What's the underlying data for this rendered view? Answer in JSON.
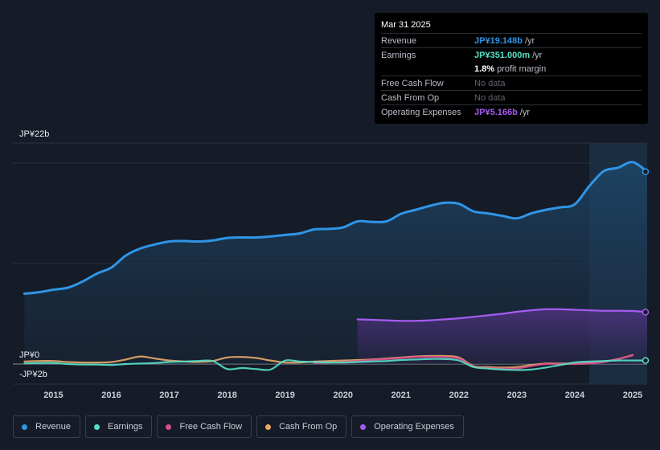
{
  "tooltip": {
    "date": "Mar 31 2025",
    "rows": [
      {
        "label": "Revenue",
        "value": "JP¥19.148b",
        "unit": "/yr",
        "color": "#2f95e6"
      },
      {
        "label": "Earnings",
        "value": "JP¥351.000m",
        "unit": "/yr",
        "color": "#55e0c8"
      },
      {
        "label": "",
        "value": "1.8%",
        "unit": "profit margin",
        "color": "#ffffff"
      },
      {
        "label": "Free Cash Flow",
        "nodata": "No data"
      },
      {
        "label": "Cash From Op",
        "nodata": "No data"
      },
      {
        "label": "Operating Expenses",
        "value": "JP¥5.166b",
        "unit": "/yr",
        "color": "#a55cf0"
      }
    ]
  },
  "legend": [
    {
      "label": "Revenue",
      "color": "#2f95e6"
    },
    {
      "label": "Earnings",
      "color": "#55e0c8"
    },
    {
      "label": "Free Cash Flow",
      "color": "#d94d8d"
    },
    {
      "label": "Cash From Op",
      "color": "#e8a868"
    },
    {
      "label": "Operating Expenses",
      "color": "#a55cf0"
    }
  ],
  "chart_data": {
    "type": "line",
    "title": "",
    "unit": "JP¥ billions",
    "y_labels": [
      "JP¥22b",
      "JP¥0",
      "-JP¥2b"
    ],
    "ylim": [
      -2,
      22
    ],
    "x_ticks": [
      "2015",
      "2016",
      "2017",
      "2018",
      "2019",
      "2020",
      "2021",
      "2022",
      "2023",
      "2024",
      "2025"
    ],
    "x_tick_values": [
      2015,
      2016,
      2017,
      2018,
      2019,
      2020,
      2021,
      2022,
      2023,
      2024,
      2025
    ],
    "xlim": [
      2014.3,
      2025.25
    ],
    "highlight_from": 2024.25,
    "series": [
      {
        "name": "Revenue",
        "color": "#2f95e6",
        "fill": true,
        "points": [
          [
            2014.5,
            7.0
          ],
          [
            2014.75,
            7.15
          ],
          [
            2015.0,
            7.4
          ],
          [
            2015.25,
            7.6
          ],
          [
            2015.5,
            8.2
          ],
          [
            2015.75,
            9.0
          ],
          [
            2016.0,
            9.6
          ],
          [
            2016.25,
            10.8
          ],
          [
            2016.5,
            11.5
          ],
          [
            2016.75,
            11.9
          ],
          [
            2017.0,
            12.2
          ],
          [
            2017.25,
            12.25
          ],
          [
            2017.5,
            12.2
          ],
          [
            2017.75,
            12.3
          ],
          [
            2018.0,
            12.55
          ],
          [
            2018.25,
            12.6
          ],
          [
            2018.5,
            12.6
          ],
          [
            2018.75,
            12.7
          ],
          [
            2019.0,
            12.85
          ],
          [
            2019.25,
            13.0
          ],
          [
            2019.5,
            13.4
          ],
          [
            2019.75,
            13.45
          ],
          [
            2020.0,
            13.6
          ],
          [
            2020.25,
            14.2
          ],
          [
            2020.5,
            14.15
          ],
          [
            2020.75,
            14.2
          ],
          [
            2021.0,
            14.95
          ],
          [
            2021.25,
            15.35
          ],
          [
            2021.5,
            15.75
          ],
          [
            2021.75,
            16.05
          ],
          [
            2022.0,
            15.95
          ],
          [
            2022.25,
            15.2
          ],
          [
            2022.5,
            15.0
          ],
          [
            2022.75,
            14.75
          ],
          [
            2023.0,
            14.5
          ],
          [
            2023.25,
            15.0
          ],
          [
            2023.5,
            15.35
          ],
          [
            2023.75,
            15.6
          ],
          [
            2024.0,
            15.9
          ],
          [
            2024.25,
            17.7
          ],
          [
            2024.5,
            19.2
          ],
          [
            2024.75,
            19.55
          ],
          [
            2025.0,
            20.1
          ],
          [
            2025.25,
            19.15
          ]
        ]
      },
      {
        "name": "Operating Expenses",
        "color": "#a55cf0",
        "fill": true,
        "points": [
          [
            2020.25,
            4.45
          ],
          [
            2020.5,
            4.4
          ],
          [
            2020.75,
            4.35
          ],
          [
            2021.0,
            4.3
          ],
          [
            2021.25,
            4.3
          ],
          [
            2021.5,
            4.35
          ],
          [
            2021.75,
            4.45
          ],
          [
            2022.0,
            4.55
          ],
          [
            2022.25,
            4.7
          ],
          [
            2022.5,
            4.85
          ],
          [
            2022.75,
            5.0
          ],
          [
            2023.0,
            5.2
          ],
          [
            2023.25,
            5.35
          ],
          [
            2023.5,
            5.45
          ],
          [
            2023.75,
            5.45
          ],
          [
            2024.0,
            5.4
          ],
          [
            2024.25,
            5.35
          ],
          [
            2024.5,
            5.3
          ],
          [
            2024.75,
            5.3
          ],
          [
            2025.0,
            5.28
          ],
          [
            2025.25,
            5.17
          ]
        ]
      },
      {
        "name": "Cash From Op",
        "color": "#e8a868",
        "fill": false,
        "points": [
          [
            2014.5,
            0.25
          ],
          [
            2014.75,
            0.3
          ],
          [
            2015.0,
            0.3
          ],
          [
            2015.25,
            0.2
          ],
          [
            2015.5,
            0.15
          ],
          [
            2015.75,
            0.15
          ],
          [
            2016.0,
            0.2
          ],
          [
            2016.25,
            0.45
          ],
          [
            2016.5,
            0.75
          ],
          [
            2016.75,
            0.55
          ],
          [
            2017.0,
            0.35
          ],
          [
            2017.25,
            0.25
          ],
          [
            2017.5,
            0.2
          ],
          [
            2017.75,
            0.3
          ],
          [
            2018.0,
            0.65
          ],
          [
            2018.25,
            0.7
          ],
          [
            2018.5,
            0.6
          ],
          [
            2018.75,
            0.35
          ],
          [
            2019.0,
            0.15
          ],
          [
            2019.25,
            0.15
          ],
          [
            2019.5,
            0.25
          ],
          [
            2019.75,
            0.3
          ],
          [
            2020.0,
            0.35
          ],
          [
            2020.25,
            0.4
          ],
          [
            2020.5,
            0.45
          ],
          [
            2020.75,
            0.55
          ],
          [
            2021.0,
            0.65
          ],
          [
            2021.25,
            0.75
          ],
          [
            2021.5,
            0.8
          ],
          [
            2021.75,
            0.8
          ],
          [
            2022.0,
            0.65
          ],
          [
            2022.25,
            -0.2
          ],
          [
            2022.5,
            -0.3
          ],
          [
            2022.75,
            -0.35
          ],
          [
            2023.0,
            -0.3
          ],
          [
            2023.25,
            -0.1
          ],
          [
            2023.5,
            0.05
          ],
          [
            2023.75,
            0.05
          ],
          [
            2024.0,
            0.05
          ],
          [
            2024.25,
            0.1
          ],
          [
            2024.5,
            0.25
          ],
          [
            2024.75,
            0.5
          ],
          [
            2025.0,
            0.9
          ]
        ]
      },
      {
        "name": "Free Cash Flow",
        "color": "#d94d8d",
        "fill": false,
        "points": [
          [
            2019.5,
            0.1
          ],
          [
            2019.75,
            0.15
          ],
          [
            2020.0,
            0.2
          ],
          [
            2020.25,
            0.3
          ],
          [
            2020.5,
            0.4
          ],
          [
            2020.75,
            0.5
          ],
          [
            2021.0,
            0.6
          ],
          [
            2021.25,
            0.7
          ],
          [
            2021.5,
            0.72
          ],
          [
            2021.75,
            0.7
          ],
          [
            2022.0,
            0.55
          ],
          [
            2022.25,
            -0.25
          ],
          [
            2022.5,
            -0.4
          ],
          [
            2022.75,
            -0.45
          ],
          [
            2023.0,
            -0.45
          ],
          [
            2023.25,
            -0.2
          ],
          [
            2023.5,
            0.0
          ],
          [
            2023.75,
            0.0
          ],
          [
            2024.0,
            0.0
          ],
          [
            2024.25,
            0.05
          ],
          [
            2024.5,
            0.2
          ],
          [
            2024.75,
            0.5
          ],
          [
            2025.0,
            0.85
          ]
        ]
      },
      {
        "name": "Earnings",
        "color": "#55e0c8",
        "fill": false,
        "points": [
          [
            2014.5,
            0.05
          ],
          [
            2014.75,
            0.1
          ],
          [
            2015.0,
            0.1
          ],
          [
            2015.25,
            0.0
          ],
          [
            2015.5,
            -0.05
          ],
          [
            2015.75,
            -0.05
          ],
          [
            2016.0,
            -0.1
          ],
          [
            2016.25,
            0.0
          ],
          [
            2016.5,
            0.05
          ],
          [
            2016.75,
            0.1
          ],
          [
            2017.0,
            0.2
          ],
          [
            2017.25,
            0.25
          ],
          [
            2017.5,
            0.3
          ],
          [
            2017.75,
            0.3
          ],
          [
            2018.0,
            -0.5
          ],
          [
            2018.25,
            -0.4
          ],
          [
            2018.5,
            -0.5
          ],
          [
            2018.75,
            -0.55
          ],
          [
            2019.0,
            0.35
          ],
          [
            2019.25,
            0.25
          ],
          [
            2019.5,
            0.2
          ],
          [
            2019.75,
            0.15
          ],
          [
            2020.0,
            0.15
          ],
          [
            2020.25,
            0.2
          ],
          [
            2020.5,
            0.25
          ],
          [
            2020.75,
            0.3
          ],
          [
            2021.0,
            0.4
          ],
          [
            2021.25,
            0.45
          ],
          [
            2021.5,
            0.5
          ],
          [
            2021.75,
            0.5
          ],
          [
            2022.0,
            0.35
          ],
          [
            2022.25,
            -0.3
          ],
          [
            2022.5,
            -0.45
          ],
          [
            2022.75,
            -0.55
          ],
          [
            2023.0,
            -0.6
          ],
          [
            2023.25,
            -0.55
          ],
          [
            2023.5,
            -0.35
          ],
          [
            2023.75,
            -0.1
          ],
          [
            2024.0,
            0.15
          ],
          [
            2024.25,
            0.25
          ],
          [
            2024.5,
            0.3
          ],
          [
            2024.75,
            0.35
          ],
          [
            2025.0,
            0.35
          ],
          [
            2025.25,
            0.35
          ]
        ]
      }
    ]
  }
}
